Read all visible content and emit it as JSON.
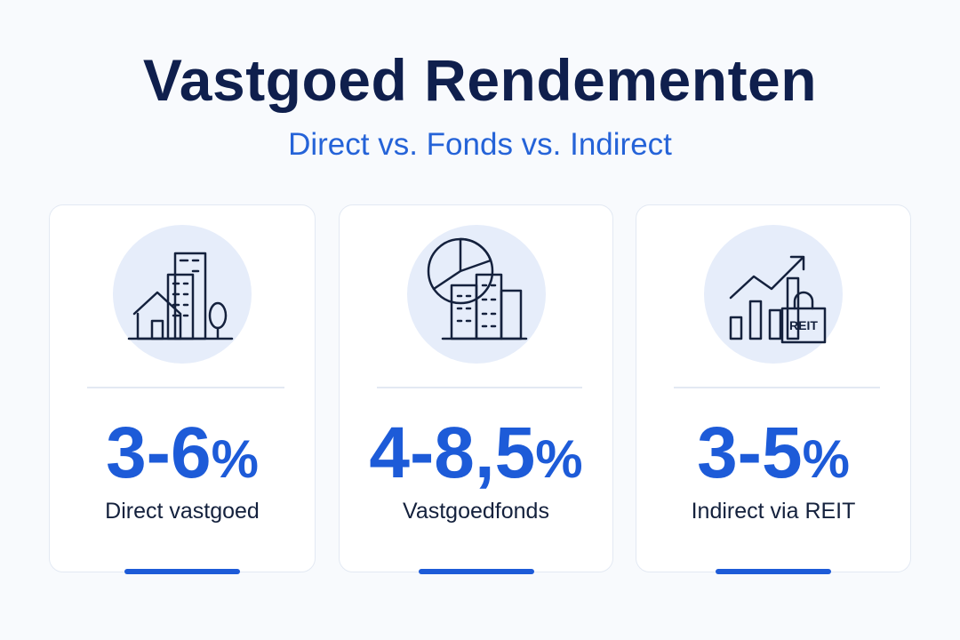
{
  "header": {
    "title": "Vastgoed Rendementen",
    "subtitle": "Direct vs. Fonds vs. Indirect"
  },
  "cards": [
    {
      "value": "3-6",
      "unit": "%",
      "label": "Direct vastgoed"
    },
    {
      "value": "4-8,5",
      "unit": "%",
      "label": "Vastgoedfonds"
    },
    {
      "value": "3-5",
      "unit": "%",
      "label": "Indirect via REIT",
      "icon_label": "REIT"
    }
  ]
}
